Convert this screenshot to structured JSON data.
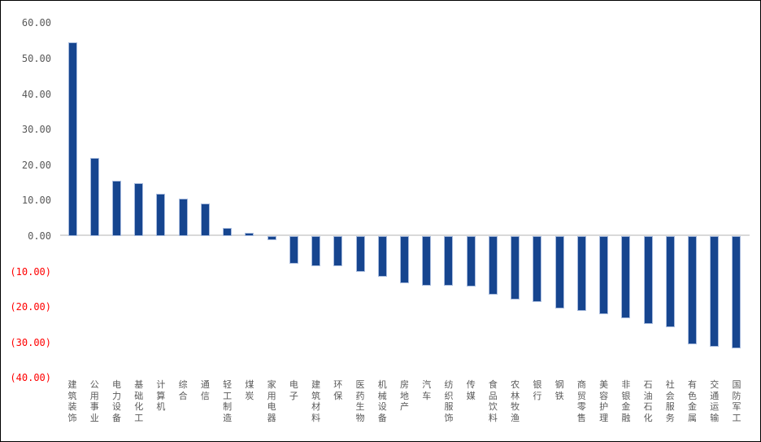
{
  "chart_data": {
    "type": "bar",
    "title": "",
    "legend": "none",
    "grid": false,
    "categories": [
      "建筑装饰",
      "公用事业",
      "电力设备",
      "基础化工",
      "计算机",
      "综合",
      "通信",
      "轻工制造",
      "煤炭",
      "家用电器",
      "电子",
      "建筑材料",
      "环保",
      "医药生物",
      "机械设备",
      "房地产",
      "汽车",
      "纺织服饰",
      "传媒",
      "食品饮料",
      "农林牧渔",
      "银行",
      "钢铁",
      "商贸零售",
      "美容护理",
      "非银金融",
      "石油石化",
      "社会服务",
      "有色金属",
      "交通运输",
      "国防军工"
    ],
    "values": [
      54.5,
      22.1,
      15.5,
      14.9,
      12.0,
      10.6,
      9.1,
      2.3,
      1.0,
      -1.1,
      -7.8,
      -8.4,
      -8.5,
      -10.1,
      -11.4,
      -13.2,
      -13.9,
      -14.1,
      -14.3,
      -16.6,
      -17.8,
      -18.5,
      -20.3,
      -21.0,
      -22.0,
      -23.1,
      -24.8,
      -25.6,
      -30.6,
      -31.3,
      -31.6
    ],
    "xlabel": "",
    "ylabel": "",
    "ylim": [
      -40,
      60
    ],
    "ytick_step": 10,
    "yticks": [
      {
        "value": 60,
        "label": "60.00"
      },
      {
        "value": 50,
        "label": "50.00"
      },
      {
        "value": 40,
        "label": "40.00"
      },
      {
        "value": 30,
        "label": "30.00"
      },
      {
        "value": 20,
        "label": "20.00"
      },
      {
        "value": 10,
        "label": "10.00"
      },
      {
        "value": 0,
        "label": "0.00"
      },
      {
        "value": -10,
        "label": "(10.00)"
      },
      {
        "value": -20,
        "label": "(20.00)"
      },
      {
        "value": -30,
        "label": "(30.00)"
      },
      {
        "value": -40,
        "label": "(40.00)"
      }
    ],
    "colors": {
      "bar_fill": "#16458f",
      "bar_edge": "#a9bcde",
      "tick_positive": "#595959",
      "tick_negative": "#ff0000",
      "category_label": "#595959",
      "axis_line": "#d9d9d9",
      "frame_border": "#000000",
      "background": "#ffffff"
    }
  }
}
